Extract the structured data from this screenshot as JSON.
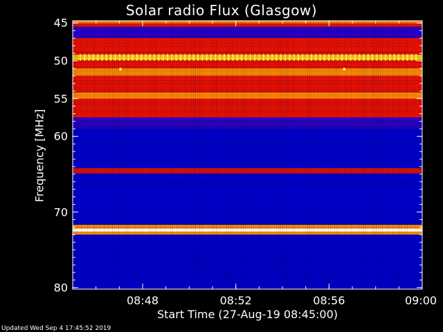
{
  "chart_data": {
    "type": "heatmap",
    "title": "Solar radio Flux (Glasgow)",
    "xlabel": "Start Time (27-Aug-19 08:45:00)",
    "ylabel": "Frequency [MHz]",
    "x_ticks": [
      "08:48",
      "08:52",
      "08:56",
      "09:00"
    ],
    "x_tick_minutes": [
      3,
      7,
      11,
      15
    ],
    "xlim_minutes": [
      0,
      15
    ],
    "y_ticks": [
      45,
      50,
      55,
      60,
      70,
      80
    ],
    "ylim": [
      44.7,
      80.2
    ],
    "colors": {
      "background": "#0000cc",
      "lowband": "#2a00c8",
      "red": "#ee1100",
      "orange": "#ff8c00",
      "yellow": "#ffd700",
      "white": "#fffff0"
    },
    "bands": [
      {
        "from": 44.7,
        "to": 45.05,
        "level": "orange"
      },
      {
        "from": 45.05,
        "to": 45.5,
        "level": "red"
      },
      {
        "from": 45.5,
        "to": 47.0,
        "level": "lowband"
      },
      {
        "from": 47.0,
        "to": 48.5,
        "level": "red"
      },
      {
        "from": 48.5,
        "to": 49.2,
        "level": "red"
      },
      {
        "from": 49.2,
        "to": 49.9,
        "level": "yellow"
      },
      {
        "from": 49.9,
        "to": 51.0,
        "level": "red"
      },
      {
        "from": 51.0,
        "to": 52.0,
        "level": "orange"
      },
      {
        "from": 52.0,
        "to": 54.2,
        "level": "red"
      },
      {
        "from": 54.2,
        "to": 55.0,
        "level": "orange"
      },
      {
        "from": 55.0,
        "to": 57.5,
        "level": "red"
      },
      {
        "from": 57.5,
        "to": 59.0,
        "level": "lowband"
      },
      {
        "from": 59.0,
        "to": 64.2,
        "level": "background"
      },
      {
        "from": 64.2,
        "to": 64.9,
        "level": "red"
      },
      {
        "from": 64.9,
        "to": 71.7,
        "level": "background"
      },
      {
        "from": 71.7,
        "to": 72.2,
        "level": "orange"
      },
      {
        "from": 72.2,
        "to": 72.6,
        "level": "white"
      },
      {
        "from": 72.6,
        "to": 73.0,
        "level": "orange"
      },
      {
        "from": 73.0,
        "to": 80.2,
        "level": "background"
      }
    ],
    "bursts": [
      {
        "minute": 2.05,
        "freq": 51.1
      },
      {
        "minute": 11.65,
        "freq": 51.1
      }
    ]
  },
  "footer": {
    "updated": "Updated Wed Sep  4 17:45:52 2019"
  }
}
